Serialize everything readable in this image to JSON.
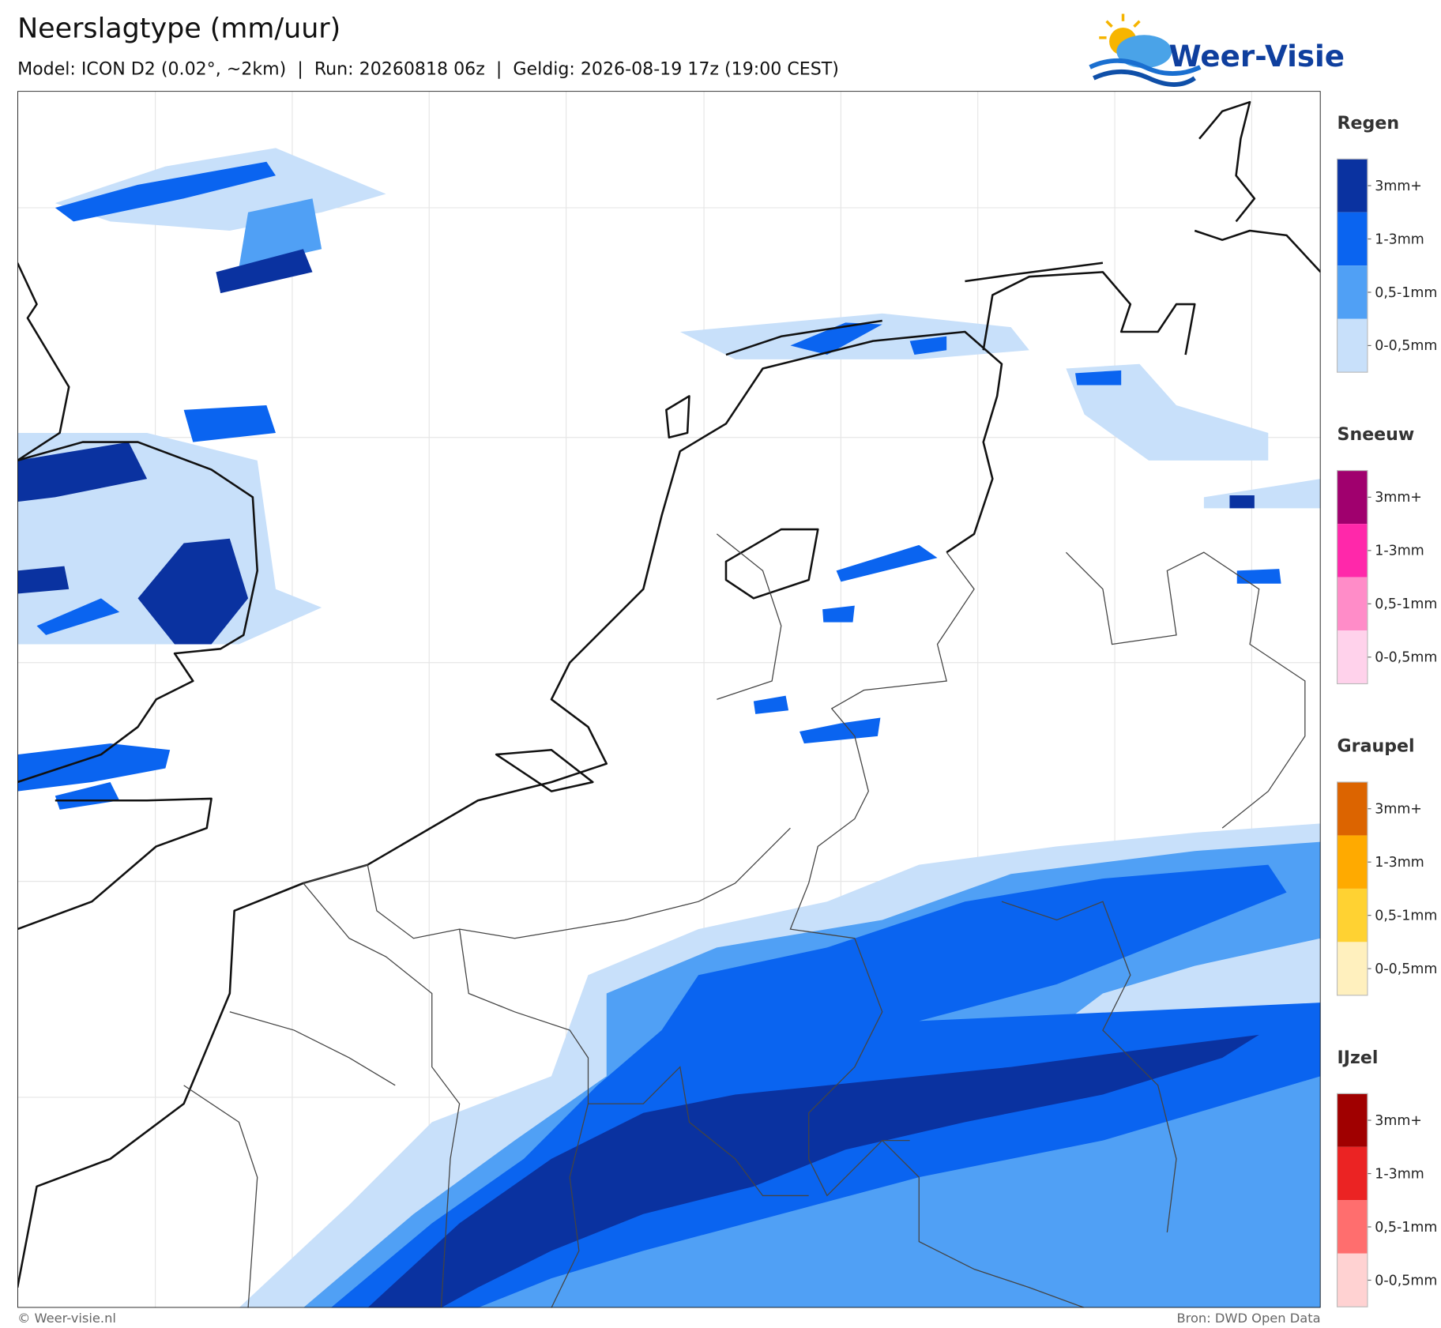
{
  "header": {
    "title": "Neerslagtype (mm/uur)",
    "subtitle": "Model: ICON D2 (0.02°, ~2km)  |  Run: 20260818 06z  |  Geldig: 2026-08-19 17z (19:00 CEST)"
  },
  "logo": {
    "text": "Weer-Visie"
  },
  "legend": [
    {
      "title": "Regen",
      "items": [
        {
          "label": "3mm+",
          "color": "#0a32a0"
        },
        {
          "label": "1-3mm",
          "color": "#0a64f0"
        },
        {
          "label": "0,5-1mm",
          "color": "#50a0f5"
        },
        {
          "label": "0-0,5mm",
          "color": "#c8e0fa"
        }
      ]
    },
    {
      "title": "Sneeuw",
      "items": [
        {
          "label": "3mm+",
          "color": "#a0006e"
        },
        {
          "label": "1-3mm",
          "color": "#ff28aa"
        },
        {
          "label": "0,5-1mm",
          "color": "#ff8cc8"
        },
        {
          "label": "0-0,5mm",
          "color": "#ffd2eb"
        }
      ]
    },
    {
      "title": "Graupel",
      "items": [
        {
          "label": "3mm+",
          "color": "#dc6400"
        },
        {
          "label": "1-3mm",
          "color": "#ffaa00"
        },
        {
          "label": "0,5-1mm",
          "color": "#ffd232"
        },
        {
          "label": "0-0,5mm",
          "color": "#fff0be"
        }
      ]
    },
    {
      "title": "IJzel",
      "items": [
        {
          "label": "3mm+",
          "color": "#a00000"
        },
        {
          "label": "1-3mm",
          "color": "#eb2323"
        },
        {
          "label": "0,5-1mm",
          "color": "#ff6e6e"
        },
        {
          "label": "0-0,5mm",
          "color": "#ffd2d2"
        }
      ]
    }
  ],
  "footer": {
    "left": "© Weer-visie.nl",
    "right": "Bron: DWD Open Data"
  }
}
